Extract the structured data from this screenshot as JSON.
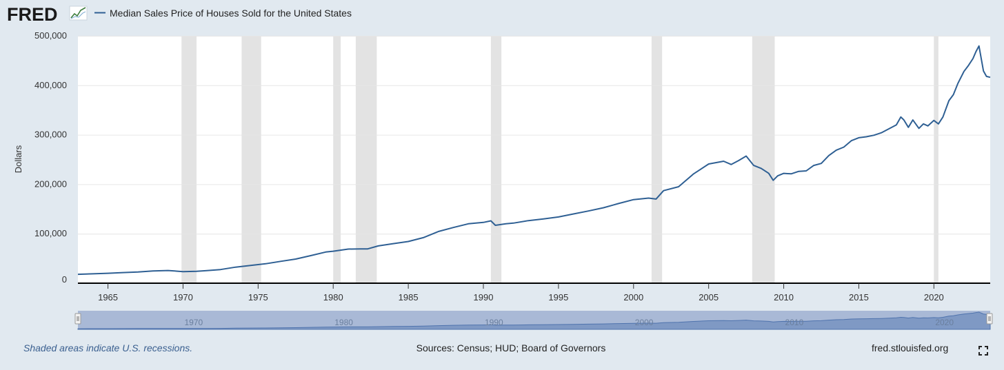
{
  "logo": {
    "text": "FRED"
  },
  "colors": {
    "line": "#2e5f93",
    "recession": "#e3e3e3",
    "grid": "#e6e6e6",
    "navigator_fill": "#a9b9d6",
    "background": "#e1e9f0"
  },
  "chart_data": {
    "type": "line",
    "title": "Median Sales Price of Houses Sold for the United States",
    "ylabel": "Dollars",
    "xlabel": "",
    "xlim": [
      1963.0,
      2023.75
    ],
    "ylim": [
      0,
      500000
    ],
    "y_ticks": [
      0,
      100000,
      200000,
      300000,
      400000,
      500000
    ],
    "y_tick_labels": [
      "0",
      "100,000",
      "200,000",
      "300,000",
      "400,000",
      "500,000"
    ],
    "x_ticks": [
      1965,
      1970,
      1975,
      1980,
      1985,
      1990,
      1995,
      2000,
      2005,
      2010,
      2015,
      2020
    ],
    "x_tick_labels": [
      "1965",
      "1970",
      "1975",
      "1980",
      "1985",
      "1990",
      "1995",
      "2000",
      "2005",
      "2010",
      "2015",
      "2020"
    ],
    "recessions": [
      [
        1969.9,
        1970.9
      ],
      [
        1973.9,
        1975.2
      ],
      [
        1980.0,
        1980.5
      ],
      [
        1981.5,
        1982.9
      ],
      [
        1990.5,
        1991.2
      ],
      [
        2001.2,
        2001.9
      ],
      [
        2007.9,
        2009.4
      ],
      [
        2020.0,
        2020.3
      ]
    ],
    "series": [
      {
        "name": "Median Sales Price of Houses Sold for the United States",
        "x": [
          1963.0,
          1964.0,
          1965.0,
          1966.0,
          1967.0,
          1968.0,
          1969.0,
          1970.0,
          1970.9,
          1971.5,
          1972.5,
          1973.5,
          1974.5,
          1975.5,
          1976.5,
          1977.5,
          1978.5,
          1979.5,
          1980.0,
          1981.0,
          1981.8,
          1982.3,
          1983.0,
          1984.0,
          1985.0,
          1986.0,
          1987.0,
          1988.0,
          1989.0,
          1990.0,
          1990.5,
          1990.8,
          1991.5,
          1992.0,
          1993.0,
          1994.0,
          1995.0,
          1996.0,
          1997.0,
          1998.0,
          1999.0,
          2000.0,
          2001.0,
          2001.5,
          2002.0,
          2003.0,
          2004.0,
          2005.0,
          2006.0,
          2006.5,
          2007.0,
          2007.5,
          2008.0,
          2008.5,
          2009.0,
          2009.3,
          2009.6,
          2010.0,
          2010.5,
          2011.0,
          2011.5,
          2012.0,
          2012.5,
          2013.0,
          2013.5,
          2014.0,
          2014.5,
          2015.0,
          2015.5,
          2016.0,
          2016.5,
          2017.0,
          2017.5,
          2017.8,
          2018.0,
          2018.3,
          2018.6,
          2019.0,
          2019.3,
          2019.6,
          2020.0,
          2020.3,
          2020.6,
          2021.0,
          2021.3,
          2021.6,
          2022.0,
          2022.3,
          2022.6,
          2022.8,
          2023.0,
          2023.3,
          2023.5,
          2023.75
        ],
        "values": [
          18000,
          18900,
          20000,
          21400,
          22700,
          24700,
          25600,
          23400,
          24000,
          25200,
          27600,
          32500,
          35900,
          39300,
          44200,
          48800,
          55700,
          62900,
          64600,
          68900,
          69300,
          69300,
          75300,
          79900,
          84300,
          92000,
          104500,
          112500,
          120000,
          122900,
          126000,
          117000,
          120000,
          121500,
          126500,
          130000,
          133900,
          140000,
          146000,
          152500,
          161000,
          169000,
          172000,
          170000,
          187000,
          195000,
          221000,
          240900,
          246500,
          240000,
          247900,
          257000,
          238000,
          232000,
          222000,
          208000,
          217000,
          222000,
          221000,
          226000,
          227000,
          238000,
          242000,
          258000,
          269000,
          275000,
          288000,
          294000,
          296000,
          299000,
          304000,
          312000,
          320000,
          336000,
          330000,
          315000,
          330000,
          313000,
          322000,
          318000,
          329000,
          322000,
          336000,
          369000,
          381000,
          404000,
          428000,
          440000,
          454000,
          468000,
          479500,
          429000,
          418000,
          416100
        ]
      }
    ]
  },
  "navigator": {
    "year_labels": [
      "1970",
      "1980",
      "1990",
      "2000",
      "2010",
      "2020"
    ]
  },
  "footer": {
    "recession_note": "Shaded areas indicate U.S. recessions.",
    "sources": "Sources: Census; HUD; Board of Governors",
    "site_url": "fred.stlouisfed.org"
  }
}
